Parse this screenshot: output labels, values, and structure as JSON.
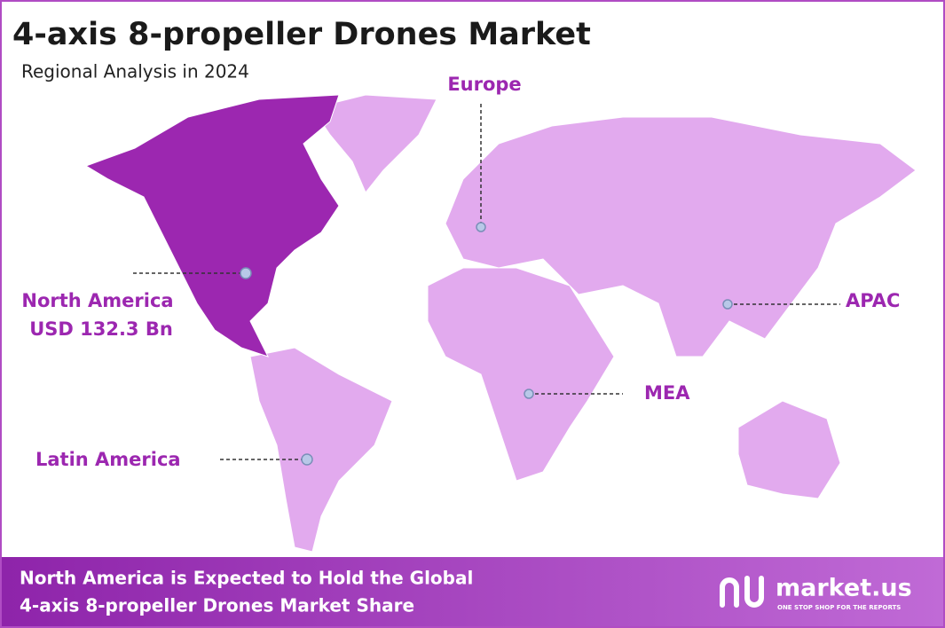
{
  "header": {
    "title": "4-axis 8-propeller Drones Market",
    "subtitle": "Regional Analysis in 2024"
  },
  "regions": [
    {
      "label": "Europe"
    },
    {
      "label": "North America",
      "value_text": "USD 132.3 Bn"
    },
    {
      "label": "APAC"
    },
    {
      "label": "MEA"
    },
    {
      "label": "Latin America"
    }
  ],
  "footer": {
    "lines": [
      "North America is Expected to Hold the Global",
      "4-axis 8-propeller Drones Market Share"
    ],
    "brand": "market.us",
    "tagline": "ONE STOP SHOP FOR THE REPORTS"
  }
}
